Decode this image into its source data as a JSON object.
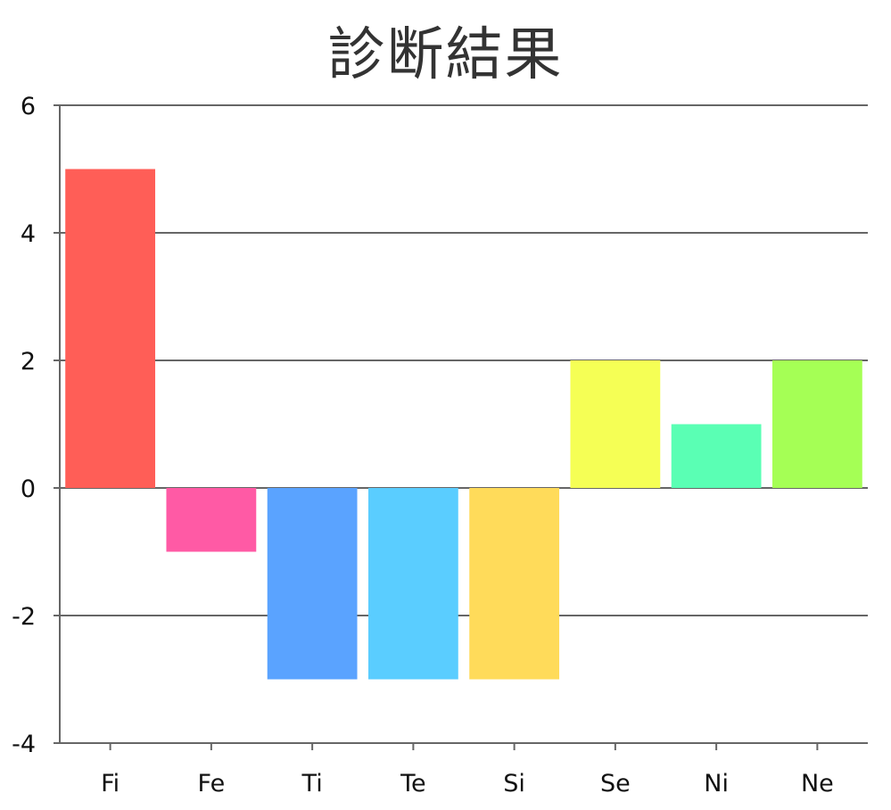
{
  "chart_data": {
    "type": "bar",
    "title": "診断結果",
    "categories": [
      "Fi",
      "Fe",
      "Ti",
      "Te",
      "Si",
      "Se",
      "Ni",
      "Ne"
    ],
    "values": [
      5,
      -1,
      -3,
      -3,
      -3,
      2,
      1,
      2
    ],
    "colors": [
      "#ff5e57",
      "#ff5aa5",
      "#5aa3ff",
      "#5acdff",
      "#ffdb5a",
      "#f5ff55",
      "#5affb4",
      "#a5ff55"
    ],
    "ylim": [
      -4,
      6
    ],
    "yticks": [
      "6",
      "4",
      "2",
      "0",
      "-2",
      "-4"
    ],
    "xlabel": "",
    "ylabel": "",
    "grid": true,
    "legend": "none"
  }
}
